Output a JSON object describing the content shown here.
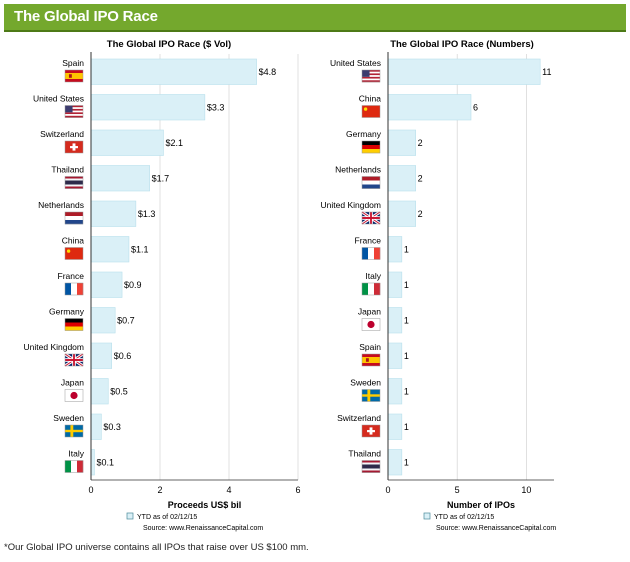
{
  "header": {
    "title": "The Global IPO Race"
  },
  "colors": {
    "banner": "#74a82d",
    "bar": "#daf0f7",
    "bar_stroke": "#b8dfeb",
    "axis": "#333333",
    "grid": "#cccccc"
  },
  "chart_data": [
    {
      "type": "bar",
      "orientation": "horizontal",
      "title": "The Global IPO Race ($ Vol)",
      "xlabel": "Proceeds US$ bil",
      "xlim": [
        0,
        6
      ],
      "xticks": [
        "0",
        "2",
        "4",
        "6"
      ],
      "grid": true,
      "legend": "YTD as of 02/12/15",
      "source": "Source: www.RenaissanceCapital.com",
      "categories": [
        "Spain",
        "United States",
        "Switzerland",
        "Thailand",
        "Netherlands",
        "China",
        "France",
        "Germany",
        "United Kingdom",
        "Japan",
        "Sweden",
        "Italy"
      ],
      "values": [
        4.8,
        3.3,
        2.1,
        1.7,
        1.3,
        1.1,
        0.9,
        0.7,
        0.6,
        0.5,
        0.3,
        0.1
      ],
      "value_labels": [
        "$4.8",
        "$3.3",
        "$2.1",
        "$1.7",
        "$1.3",
        "$1.1",
        "$0.9",
        "$0.7",
        "$0.6",
        "$0.5",
        "$0.3",
        "$0.1"
      ],
      "flags": [
        "spain-flag",
        "us-flag",
        "switzerland-flag",
        "thailand-flag",
        "netherlands-flag",
        "china-flag",
        "france-flag",
        "germany-flag",
        "uk-flag",
        "japan-flag",
        "sweden-flag",
        "italy-flag"
      ]
    },
    {
      "type": "bar",
      "orientation": "horizontal",
      "title": "The Global IPO Race (Numbers)",
      "xlabel": "Number of IPOs",
      "xlim": [
        0,
        12
      ],
      "xticks": [
        "0",
        "5",
        "10"
      ],
      "grid": true,
      "legend": "YTD as of 02/12/15",
      "source": "Source: www.RenaissanceCapital.com",
      "categories": [
        "United States",
        "China",
        "Germany",
        "Netherlands",
        "United Kingdom",
        "France",
        "Italy",
        "Japan",
        "Spain",
        "Sweden",
        "Switzerland",
        "Thailand"
      ],
      "values": [
        11,
        6,
        2,
        2,
        2,
        1,
        1,
        1,
        1,
        1,
        1,
        1
      ],
      "value_labels": [
        "11",
        "6",
        "2",
        "2",
        "2",
        "1",
        "1",
        "1",
        "1",
        "1",
        "1",
        "1"
      ],
      "flags": [
        "us-flag",
        "china-flag",
        "germany-flag",
        "netherlands-flag",
        "uk-flag",
        "france-flag",
        "italy-flag",
        "japan-flag",
        "spain-flag",
        "sweden-flag",
        "switzerland-flag",
        "thailand-flag"
      ]
    }
  ],
  "footnote": "*Our Global IPO universe contains all IPOs that raise over US $100 mm."
}
